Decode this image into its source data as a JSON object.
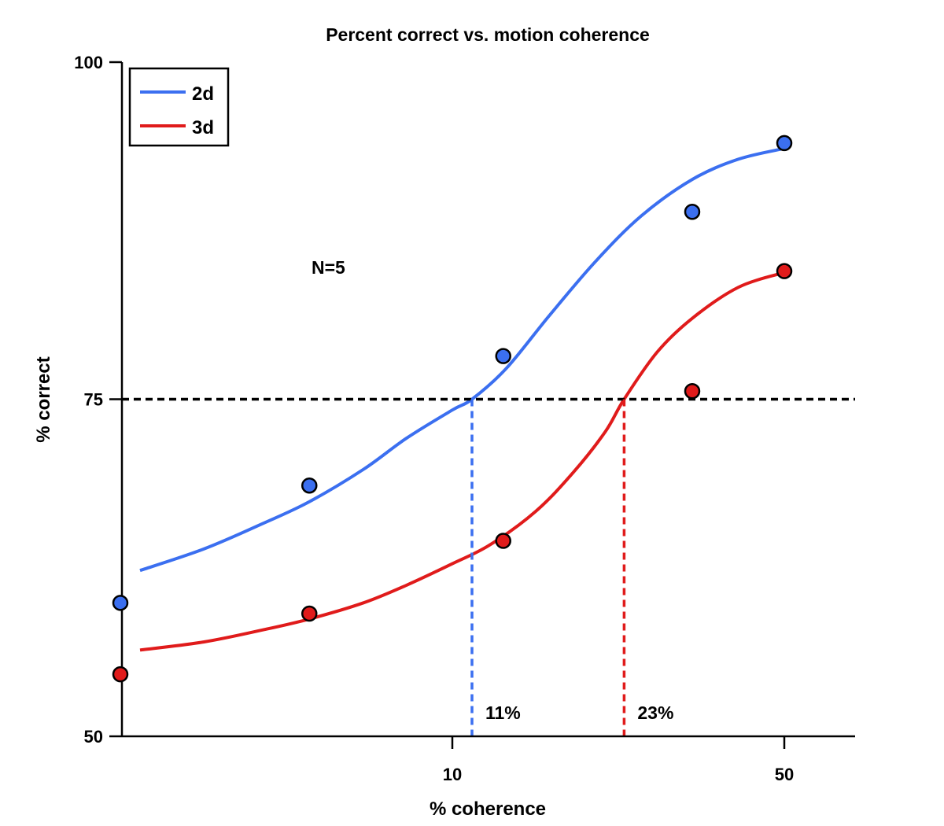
{
  "chart_data": {
    "type": "scatter",
    "title": "Percent correct vs. motion coherence",
    "xlabel": "% coherence",
    "ylabel": "% correct",
    "xscale": "log",
    "xlim": [
      1.5,
      70
    ],
    "ylim": [
      50,
      100
    ],
    "x_ticks": [
      {
        "value": 10,
        "label": "10"
      },
      {
        "value": 50,
        "label": "50"
      }
    ],
    "y_ticks": [
      {
        "value": 50,
        "label": "50"
      },
      {
        "value": 75,
        "label": "75"
      },
      {
        "value": 100,
        "label": "100"
      }
    ],
    "legend_position": "top-left",
    "series": [
      {
        "name": "2d",
        "color": "#3b6ff0",
        "points": [
          {
            "x": 2.0,
            "y": 59.9
          },
          {
            "x": 5.0,
            "y": 68.6
          },
          {
            "x": 12.8,
            "y": 78.2
          },
          {
            "x": 32.0,
            "y": 88.9
          },
          {
            "x": 50.0,
            "y": 94.0
          }
        ],
        "fit": [
          {
            "x": 2.2,
            "y": 62.3
          },
          {
            "x": 3.0,
            "y": 63.9
          },
          {
            "x": 4.0,
            "y": 65.8
          },
          {
            "x": 5.0,
            "y": 67.4
          },
          {
            "x": 6.5,
            "y": 69.8
          },
          {
            "x": 8.0,
            "y": 72.1
          },
          {
            "x": 10.0,
            "y": 74.2
          },
          {
            "x": 11.0,
            "y": 75.0
          },
          {
            "x": 13.0,
            "y": 77.3
          },
          {
            "x": 16.0,
            "y": 81.2
          },
          {
            "x": 20.0,
            "y": 85.2
          },
          {
            "x": 25.0,
            "y": 88.6
          },
          {
            "x": 32.0,
            "y": 91.3
          },
          {
            "x": 40.0,
            "y": 92.8
          },
          {
            "x": 50.0,
            "y": 93.6
          }
        ]
      },
      {
        "name": "3d",
        "color": "#e01b1b",
        "points": [
          {
            "x": 2.0,
            "y": 54.6
          },
          {
            "x": 5.0,
            "y": 59.1
          },
          {
            "x": 12.8,
            "y": 64.5
          },
          {
            "x": 32.0,
            "y": 75.6
          },
          {
            "x": 50.0,
            "y": 84.5
          }
        ],
        "fit": [
          {
            "x": 2.2,
            "y": 56.4
          },
          {
            "x": 3.0,
            "y": 57.0
          },
          {
            "x": 4.0,
            "y": 57.9
          },
          {
            "x": 5.0,
            "y": 58.7
          },
          {
            "x": 6.5,
            "y": 59.9
          },
          {
            "x": 8.0,
            "y": 61.2
          },
          {
            "x": 10.0,
            "y": 62.8
          },
          {
            "x": 12.0,
            "y": 64.2
          },
          {
            "x": 15.0,
            "y": 66.7
          },
          {
            "x": 18.0,
            "y": 69.6
          },
          {
            "x": 21.0,
            "y": 72.6
          },
          {
            "x": 23.0,
            "y": 75.0
          },
          {
            "x": 27.0,
            "y": 78.5
          },
          {
            "x": 32.0,
            "y": 81.0
          },
          {
            "x": 40.0,
            "y": 83.3
          },
          {
            "x": 50.0,
            "y": 84.4
          }
        ]
      }
    ],
    "threshold": {
      "y": 75
    },
    "thresholds": [
      {
        "series": "2d",
        "x": 11,
        "label": "11%"
      },
      {
        "series": "3d",
        "x": 23,
        "label": "23%"
      }
    ],
    "annotation": "N=5"
  }
}
